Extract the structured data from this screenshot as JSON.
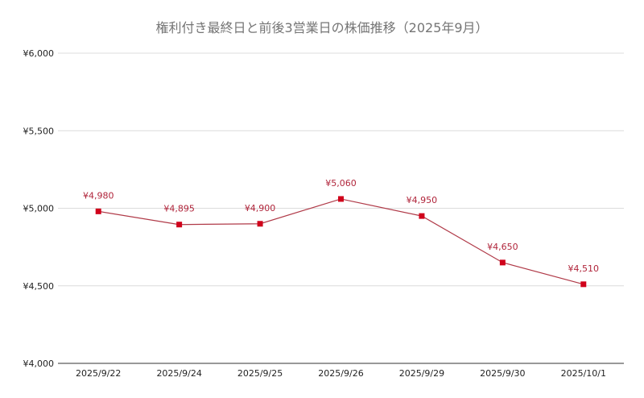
{
  "chart_data": {
    "type": "line",
    "title": "権利付き最終日と前後3営業日の株価推移（2025年9月）",
    "categories": [
      "2025/9/22",
      "2025/9/24",
      "2025/9/25",
      "2025/9/26",
      "2025/9/29",
      "2025/9/30",
      "2025/10/1"
    ],
    "values": [
      4980,
      4895,
      4900,
      5060,
      4950,
      4650,
      4510
    ],
    "data_labels": [
      "¥4,980",
      "¥4,895",
      "¥4,900",
      "¥5,060",
      "¥4,950",
      "¥4,650",
      "¥4,510"
    ],
    "yticks": [
      {
        "value": 4000,
        "label": "¥4,000"
      },
      {
        "value": 4500,
        "label": "¥4,500"
      },
      {
        "value": 5000,
        "label": "¥5,000"
      },
      {
        "value": 5500,
        "label": "¥5,500"
      },
      {
        "value": 6000,
        "label": "¥6,000"
      }
    ],
    "ylim": [
      4000,
      6000
    ],
    "xlabel": "",
    "ylabel": "",
    "grid": true,
    "legend": "none",
    "line_color": "#b03a48",
    "marker_color": "#d0021b",
    "label_color": "#b0243a"
  }
}
